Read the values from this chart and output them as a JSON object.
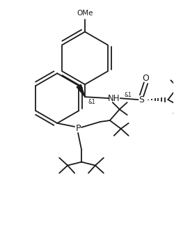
{
  "bg_color": "#ffffff",
  "line_color": "#1a1a1a",
  "line_width": 1.3,
  "figsize": [
    2.5,
    3.26
  ],
  "dpi": 100,
  "xlim": [
    0,
    250
  ],
  "ylim": [
    0,
    326
  ]
}
